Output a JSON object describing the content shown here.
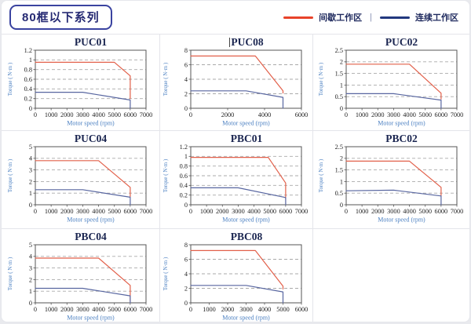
{
  "header": {
    "badge": "80框以下系列",
    "legend": {
      "intermittent": "间歇工作区",
      "separator": "|",
      "continuous": "连续工作区"
    }
  },
  "colors": {
    "legend_red": "#e8432a",
    "legend_blue": "#22387e",
    "chart_red": "#e2604a",
    "chart_blue": "#5866a0",
    "grid_line": "#a9a9a9",
    "plot_border": "#555555",
    "tick_text": "#222222",
    "axis_label_blue": "#4a7fc1",
    "title_navy": "#1a2550"
  },
  "chart_data": [
    {
      "type": "line",
      "title": "PUC01",
      "cursor": false,
      "xlabel": "Motor speed (rpm)",
      "ylabel": "Torque ( N·m )",
      "xlim": [
        0,
        7000
      ],
      "ylim": [
        0,
        1.2
      ],
      "grid": true,
      "legend_position": "top-right-global",
      "xticks": [
        0,
        1000,
        2000,
        3000,
        4000,
        5000,
        6000,
        7000
      ],
      "yticks": [
        "0",
        "0.2",
        "0.4",
        "0.6",
        "0.8",
        "1",
        "1.2"
      ],
      "series": [
        {
          "name": "间歇工作区",
          "color_key": "chart_red",
          "points": [
            [
              0,
              0.95
            ],
            [
              5000,
              0.95
            ],
            [
              6000,
              0.67
            ],
            [
              6000,
              0.2
            ]
          ]
        },
        {
          "name": "连续工作区",
          "color_key": "chart_blue",
          "points": [
            [
              0,
              0.33
            ],
            [
              3000,
              0.33
            ],
            [
              6000,
              0.17
            ],
            [
              6000,
              0
            ]
          ]
        }
      ]
    },
    {
      "type": "line",
      "title": "PUC08",
      "cursor": true,
      "xlabel": "Motor speed (rpm)",
      "ylabel": "Torque ( N·m )",
      "xlim": [
        0,
        6000
      ],
      "ylim": [
        0,
        8
      ],
      "grid": true,
      "legend_position": "top-right-global",
      "xticks": [
        0,
        2000,
        4000,
        6000
      ],
      "yticks": [
        "0",
        "2",
        "4",
        "6",
        "8"
      ],
      "series": [
        {
          "name": "间歇工作区",
          "color_key": "chart_red",
          "points": [
            [
              0,
              7.2
            ],
            [
              3500,
              7.2
            ],
            [
              5000,
              2.4
            ],
            [
              5000,
              2.1
            ]
          ]
        },
        {
          "name": "连续工作区",
          "color_key": "chart_blue",
          "points": [
            [
              0,
              2.4
            ],
            [
              3000,
              2.4
            ],
            [
              5000,
              1.5
            ],
            [
              5000,
              0
            ]
          ]
        }
      ]
    },
    {
      "type": "line",
      "title": "PUC02",
      "cursor": false,
      "xlabel": "Motor speed (rpm)",
      "ylabel": "Torque ( N·m )",
      "xlim": [
        0,
        7000
      ],
      "ylim": [
        0,
        2.5
      ],
      "grid": true,
      "legend_position": "top-right-global",
      "xticks": [
        0,
        1000,
        2000,
        3000,
        4000,
        5000,
        6000,
        7000
      ],
      "yticks": [
        "0",
        "0.5",
        "1",
        "1.5",
        "2",
        "2.5"
      ],
      "series": [
        {
          "name": "间歇工作区",
          "color_key": "chart_red",
          "points": [
            [
              0,
              1.9
            ],
            [
              4000,
              1.9
            ],
            [
              6000,
              0.65
            ],
            [
              6000,
              0.4
            ]
          ]
        },
        {
          "name": "连续工作区",
          "color_key": "chart_blue",
          "points": [
            [
              0,
              0.63
            ],
            [
              3000,
              0.63
            ],
            [
              6000,
              0.35
            ],
            [
              6000,
              0
            ]
          ]
        }
      ]
    },
    {
      "type": "line",
      "title": "PUC04",
      "cursor": false,
      "xlabel": "Motor speed (rpm)",
      "ylabel": "Torque ( N·m )",
      "xlim": [
        0,
        7000
      ],
      "ylim": [
        0,
        5
      ],
      "grid": true,
      "legend_position": "top-right-global",
      "xticks": [
        0,
        1000,
        2000,
        3000,
        4000,
        5000,
        6000,
        7000
      ],
      "yticks": [
        "0",
        "1",
        "2",
        "3",
        "4",
        "5"
      ],
      "series": [
        {
          "name": "间歇工作区",
          "color_key": "chart_red",
          "points": [
            [
              0,
              3.8
            ],
            [
              4000,
              3.8
            ],
            [
              6000,
              1.5
            ],
            [
              6000,
              0.7
            ]
          ]
        },
        {
          "name": "连续工作区",
          "color_key": "chart_blue",
          "points": [
            [
              0,
              1.3
            ],
            [
              3000,
              1.3
            ],
            [
              6000,
              0.65
            ],
            [
              6000,
              0
            ]
          ]
        }
      ]
    },
    {
      "type": "line",
      "title": "PBC01",
      "cursor": false,
      "xlabel": "Motor speed (rpm)",
      "ylabel": "Torque ( N·m )",
      "xlim": [
        0,
        7000
      ],
      "ylim": [
        0,
        1.2
      ],
      "grid": true,
      "legend_position": "top-right-global",
      "xticks": [
        0,
        1000,
        2000,
        3000,
        4000,
        5000,
        6000,
        7000
      ],
      "yticks": [
        "0",
        "0.2",
        "0.4",
        "0.6",
        "0.8",
        "1",
        "1.2"
      ],
      "series": [
        {
          "name": "间歇工作区",
          "color_key": "chart_red",
          "points": [
            [
              0,
              0.98
            ],
            [
              4900,
              0.98
            ],
            [
              6000,
              0.45
            ],
            [
              6000,
              0.12
            ]
          ]
        },
        {
          "name": "连续工作区",
          "color_key": "chart_blue",
          "points": [
            [
              0,
              0.35
            ],
            [
              3000,
              0.35
            ],
            [
              6000,
              0.15
            ],
            [
              6000,
              0
            ]
          ]
        }
      ]
    },
    {
      "type": "line",
      "title": "PBC02",
      "cursor": false,
      "xlabel": "Motor speed (rpm)",
      "ylabel": "Torque ( N·m )",
      "xlim": [
        0,
        7000
      ],
      "ylim": [
        0,
        2.5
      ],
      "grid": true,
      "legend_position": "top-right-global",
      "xticks": [
        0,
        1000,
        2000,
        3000,
        4000,
        5000,
        6000,
        7000
      ],
      "yticks": [
        "0",
        "0.5",
        "1",
        "1.5",
        "2",
        "2.5"
      ],
      "series": [
        {
          "name": "间歇工作区",
          "color_key": "chart_red",
          "points": [
            [
              0,
              1.88
            ],
            [
              4000,
              1.88
            ],
            [
              6000,
              0.75
            ],
            [
              6000,
              0.4
            ]
          ]
        },
        {
          "name": "连续工作区",
          "color_key": "chart_blue",
          "points": [
            [
              0,
              0.6
            ],
            [
              3000,
              0.63
            ],
            [
              6000,
              0.38
            ],
            [
              6000,
              0
            ]
          ]
        }
      ]
    },
    {
      "type": "line",
      "title": "PBC04",
      "cursor": false,
      "xlabel": "Motor speed (rpm)",
      "ylabel": "Torque ( N·m )",
      "xlim": [
        0,
        7000
      ],
      "ylim": [
        0,
        5
      ],
      "grid": true,
      "legend_position": "top-right-global",
      "xticks": [
        0,
        1000,
        2000,
        3000,
        4000,
        5000,
        6000,
        7000
      ],
      "yticks": [
        "0",
        "1",
        "2",
        "3",
        "4",
        "5"
      ],
      "series": [
        {
          "name": "间歇工作区",
          "color_key": "chart_red",
          "points": [
            [
              0,
              3.85
            ],
            [
              4000,
              3.85
            ],
            [
              6000,
              1.5
            ],
            [
              6000,
              0.15
            ]
          ]
        },
        {
          "name": "连续工作区",
          "color_key": "chart_blue",
          "points": [
            [
              0,
              1.25
            ],
            [
              3000,
              1.25
            ],
            [
              6000,
              0.6
            ],
            [
              6000,
              0
            ]
          ]
        }
      ]
    },
    {
      "type": "line",
      "title": "PBC08",
      "cursor": false,
      "xlabel": "Motor speed (rpm)",
      "ylabel": "Torque ( N·m )",
      "xlim": [
        0,
        6000
      ],
      "ylim": [
        0,
        8
      ],
      "grid": true,
      "legend_position": "top-right-global",
      "xticks": [
        0,
        1000,
        2000,
        3000,
        4000,
        5000,
        6000
      ],
      "yticks": [
        "0",
        "2",
        "4",
        "6",
        "8"
      ],
      "series": [
        {
          "name": "间歇工作区",
          "color_key": "chart_red",
          "points": [
            [
              0,
              7.2
            ],
            [
              3500,
              7.2
            ],
            [
              5000,
              2.3
            ],
            [
              5000,
              1.9
            ]
          ]
        },
        {
          "name": "连续工作区",
          "color_key": "chart_blue",
          "points": [
            [
              0,
              2.4
            ],
            [
              3000,
              2.4
            ],
            [
              5000,
              1.5
            ],
            [
              5000,
              0
            ]
          ]
        }
      ]
    }
  ]
}
